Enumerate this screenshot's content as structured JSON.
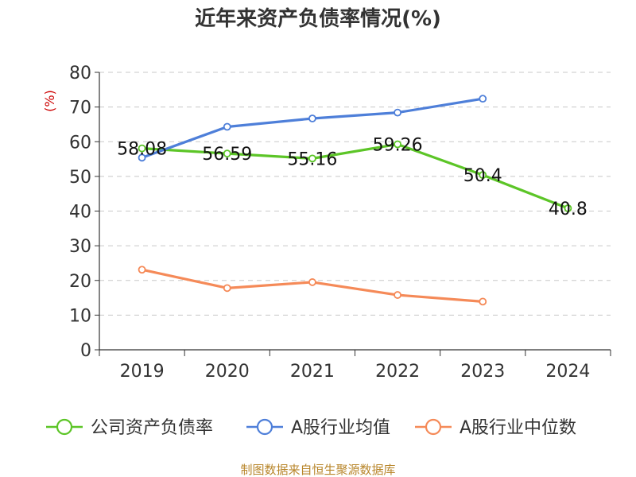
{
  "chart_data": {
    "type": "line",
    "title": "近年来资产负债率情况(%)",
    "ylabel": "(%)",
    "xlabel": "",
    "ylim": [
      0,
      80
    ],
    "yticks": [
      0,
      10,
      20,
      30,
      40,
      50,
      60,
      70,
      80
    ],
    "categories": [
      "2019",
      "2020",
      "2021",
      "2022",
      "2023",
      "2024"
    ],
    "grid": true,
    "legend_position": "bottom",
    "series": [
      {
        "name": "公司资产负债率",
        "color": "#5cc527",
        "values": [
          58.08,
          56.59,
          55.16,
          59.26,
          50.4,
          40.8
        ],
        "labels": [
          "58.08",
          "56.59",
          "55.16",
          "59.26",
          "50.4",
          "40.8"
        ]
      },
      {
        "name": "A股行业均值",
        "color": "#4e7fd9",
        "values": [
          55.4,
          64.3,
          66.7,
          68.4,
          72.4,
          null
        ]
      },
      {
        "name": "A股行业中位数",
        "color": "#f58a58",
        "values": [
          23.1,
          17.8,
          19.5,
          15.8,
          13.9,
          null
        ]
      }
    ],
    "source": "制图数据来自恒生聚源数据库"
  }
}
